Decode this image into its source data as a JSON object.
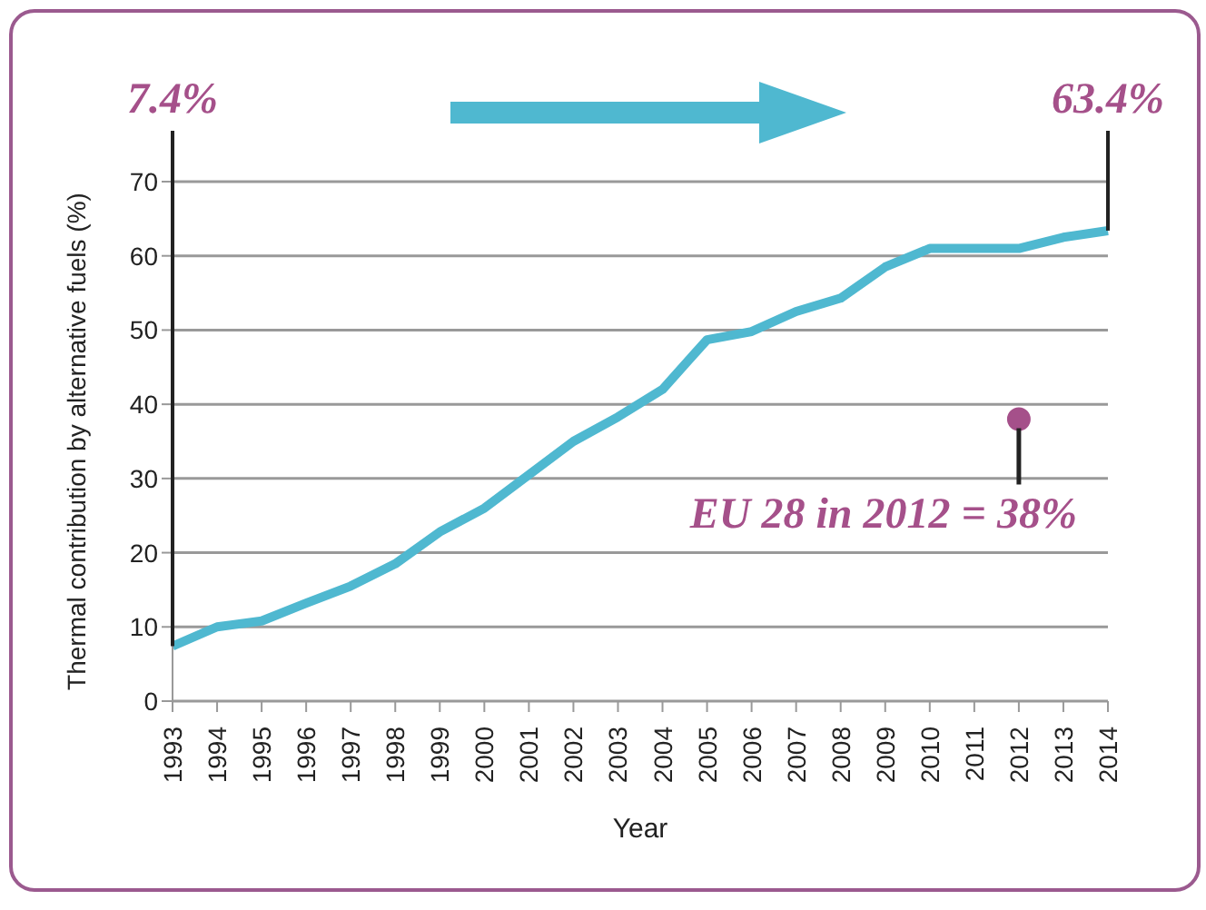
{
  "chart_data": {
    "type": "line",
    "xlabel": "Year",
    "ylabel": "Thermal contribution by alternative fuels (%)",
    "categories": [
      "1993",
      "1994",
      "1995",
      "1996",
      "1997",
      "1998",
      "1999",
      "2000",
      "2001",
      "2002",
      "2003",
      "2004",
      "2005",
      "2006",
      "2007",
      "2008",
      "2009",
      "2010",
      "2011",
      "2012",
      "2013",
      "2014"
    ],
    "series": [
      {
        "color": "#4fb8d0",
        "values": [
          7.4,
          10,
          10.8,
          13.2,
          15.5,
          18.5,
          22.8,
          26,
          30.5,
          35,
          38.3,
          42,
          48.7,
          49.8,
          52.5,
          54.3,
          58.5,
          61,
          61,
          61,
          62.5,
          63.4
        ]
      },
      {
        "type": "scatter",
        "color": "#a5508a",
        "marker": "circle",
        "values": [
          null,
          null,
          null,
          null,
          null,
          null,
          null,
          null,
          null,
          null,
          null,
          null,
          null,
          null,
          null,
          null,
          null,
          null,
          null,
          38,
          null,
          null
        ]
      }
    ],
    "ylim": [
      0,
      70
    ],
    "yticks": [
      0,
      10,
      20,
      30,
      40,
      50,
      60,
      70
    ],
    "grid": "y",
    "marker": "none",
    "line_style": "solid",
    "annotations": [
      "7.4%",
      {
        "text": "63.4%",
        "x": "2014",
        "y": 63.4
      },
      {
        "text": "EU 28 in 2012 = 38%",
        "x": "2012",
        "y": 38
      }
    ]
  }
}
